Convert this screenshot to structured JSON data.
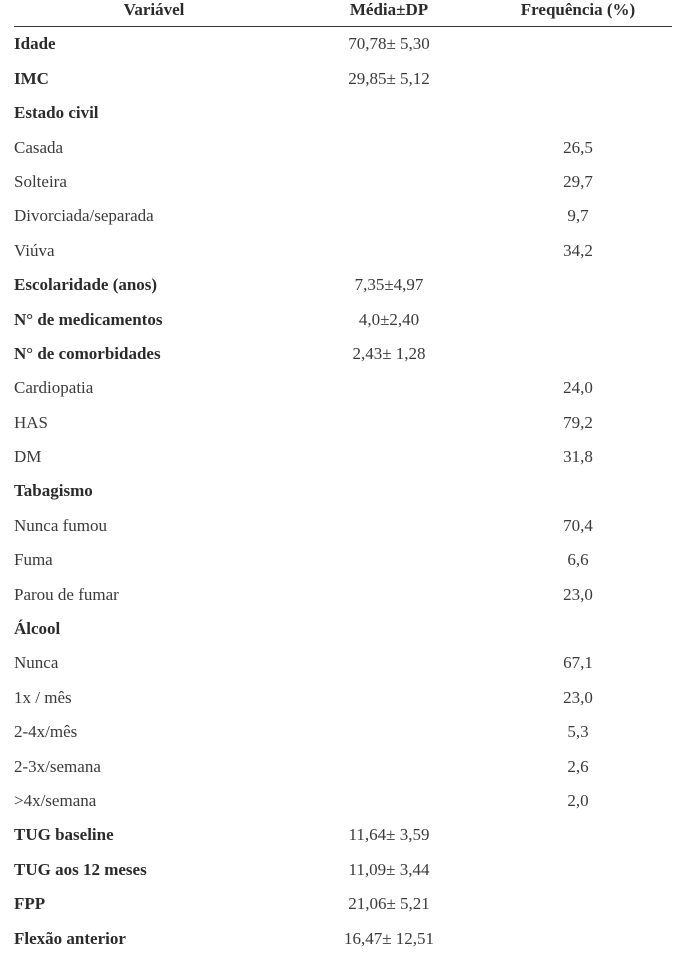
{
  "header": {
    "variable": "Variável",
    "mean": "Média±DP",
    "freq": "Frequência (%)"
  },
  "rows": [
    {
      "variable": "Idade",
      "mean": "70,78± 5,30",
      "freq": "",
      "bold": true
    },
    {
      "variable": "IMC",
      "mean": "29,85± 5,12",
      "freq": "",
      "bold": true
    },
    {
      "variable": "Estado civil",
      "mean": "",
      "freq": "",
      "bold": true
    },
    {
      "variable": "Casada",
      "mean": "",
      "freq": "26,5",
      "bold": false
    },
    {
      "variable": "Solteira",
      "mean": "",
      "freq": "29,7",
      "bold": false
    },
    {
      "variable": "Divorciada/separada",
      "mean": "",
      "freq": "9,7",
      "bold": false
    },
    {
      "variable": "Viúva",
      "mean": "",
      "freq": "34,2",
      "bold": false
    },
    {
      "variable": "Escolaridade  (anos)",
      "mean": "7,35±4,97",
      "freq": "",
      "bold": true
    },
    {
      "variable": "N° de medicamentos",
      "mean": "4,0±2,40",
      "freq": "",
      "bold": true
    },
    {
      "variable": "N° de comorbidades",
      "mean": "2,43± 1,28",
      "freq": "",
      "bold": true
    },
    {
      "variable": "Cardiopatia",
      "mean": "",
      "freq": "24,0",
      "bold": false
    },
    {
      "variable": "HAS",
      "mean": "",
      "freq": "79,2",
      "bold": false
    },
    {
      "variable": "DM",
      "mean": "",
      "freq": "31,8",
      "bold": false
    },
    {
      "variable": "Tabagismo",
      "mean": "",
      "freq": "",
      "bold": true
    },
    {
      "variable": "Nunca fumou",
      "mean": "",
      "freq": "70,4",
      "bold": false
    },
    {
      "variable": "Fuma",
      "mean": "",
      "freq": "6,6",
      "bold": false
    },
    {
      "variable": "Parou de fumar",
      "mean": "",
      "freq": "23,0",
      "bold": false
    },
    {
      "variable": "Álcool",
      "mean": "",
      "freq": "",
      "bold": true
    },
    {
      "variable": "Nunca",
      "mean": "",
      "freq": "67,1",
      "bold": false
    },
    {
      "variable": "1x / mês",
      "mean": "",
      "freq": "23,0",
      "bold": false
    },
    {
      "variable": "2-4x/mês",
      "mean": "",
      "freq": "5,3",
      "bold": false
    },
    {
      "variable": "2-3x/semana",
      "mean": "",
      "freq": "2,6",
      "bold": false
    },
    {
      "variable": ">4x/semana",
      "mean": "",
      "freq": "2,0",
      "bold": false
    },
    {
      "variable": "TUG baseline",
      "mean": "11,64± 3,59",
      "freq": "",
      "bold": true
    },
    {
      "variable": "TUG aos 12 meses",
      "mean": "11,09± 3,44",
      "freq": "",
      "bold": true
    },
    {
      "variable": "FPP",
      "mean": "21,06± 5,21",
      "freq": "",
      "bold": true
    },
    {
      "variable": "Flexão anterior",
      "mean": "16,47± 12,51",
      "freq": "",
      "bold": true
    }
  ]
}
